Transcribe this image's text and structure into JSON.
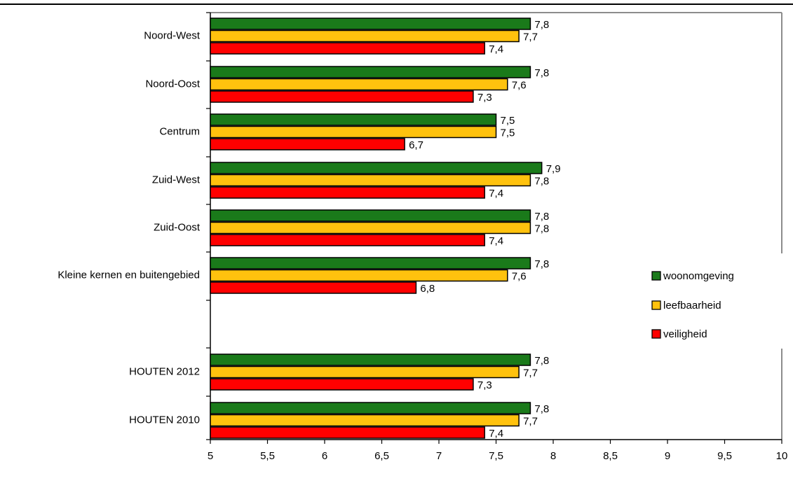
{
  "chart_data": {
    "type": "bar",
    "orientation": "horizontal",
    "categories": [
      "Noord-West",
      "Noord-Oost",
      "Centrum",
      "Zuid-West",
      "Zuid-Oost",
      "Kleine kernen en buitengebied",
      "HOUTEN 2012",
      "HOUTEN 2010"
    ],
    "series": [
      {
        "name": "woonomgeving",
        "color": "#1a7a1a",
        "values": [
          7.8,
          7.8,
          7.5,
          7.9,
          7.8,
          7.8,
          7.8,
          7.8
        ],
        "labels": [
          "7,8",
          "7,8",
          "7,5",
          "7,9",
          "7,8",
          "7,8",
          "7,8",
          "7,8"
        ]
      },
      {
        "name": "leefbaarheid",
        "color": "#ffc20e",
        "values": [
          7.7,
          7.6,
          7.5,
          7.8,
          7.8,
          7.6,
          7.7,
          7.7
        ],
        "labels": [
          "7,7",
          "7,6",
          "7,5",
          "7,8",
          "7,8",
          "7,6",
          "7,7",
          "7,7"
        ]
      },
      {
        "name": "veiligheid",
        "color": "#ff0000",
        "values": [
          7.4,
          7.3,
          6.7,
          7.4,
          7.4,
          6.8,
          7.3,
          7.4
        ],
        "labels": [
          "7,4",
          "7,3",
          "6,7",
          "7,4",
          "7,4",
          "6,8",
          "7,3",
          "7,4"
        ]
      }
    ],
    "xlim": [
      5,
      10
    ],
    "xticks": [
      5,
      5.5,
      6,
      6.5,
      7,
      7.5,
      8,
      8.5,
      9,
      9.5,
      10
    ],
    "xtick_labels": [
      "5",
      "5,5",
      "6",
      "6,5",
      "7",
      "7,5",
      "8",
      "8,5",
      "9",
      "9,5",
      "10"
    ],
    "legend_position": "right",
    "grid": false,
    "title": "",
    "xlabel": "",
    "ylabel": ""
  }
}
